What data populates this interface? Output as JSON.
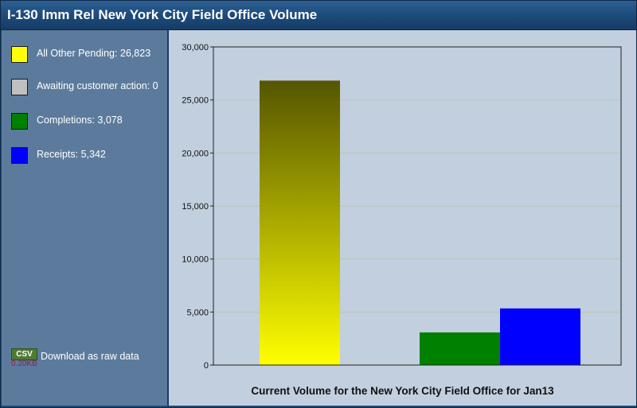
{
  "window": {
    "title": "I-130 Imm Rel New York City Field Office Volume"
  },
  "legend": [
    {
      "label": "All Other Pending: 26,823",
      "color": "#ffff00"
    },
    {
      "label": "Awaiting customer action: 0",
      "color": "#c0c0c0"
    },
    {
      "label": "Completions: 3,078",
      "color": "#008000"
    },
    {
      "label": "Receipts: 5,342",
      "color": "#0000ff"
    }
  ],
  "download": {
    "badge": "CSV",
    "size": "0.20KB",
    "label": "Download as raw data"
  },
  "chart_data": {
    "type": "bar",
    "title": "Current Volume for the New York City Field Office for Jan13",
    "ylim": [
      0,
      30000
    ],
    "yticks": [
      0,
      5000,
      10000,
      15000,
      20000,
      25000,
      30000
    ],
    "ytick_labels": [
      "0",
      "5,000",
      "10,000",
      "15,000",
      "20,000",
      "25,000",
      "30,000"
    ],
    "grid": true,
    "series": [
      {
        "name": "All Other Pending",
        "value": 26823,
        "color": "#ffff00",
        "gradient_top": "#555500"
      },
      {
        "name": "Awaiting customer action",
        "value": 0,
        "color": "#c0c0c0"
      },
      {
        "name": "Completions",
        "value": 3078,
        "color": "#008000"
      },
      {
        "name": "Receipts",
        "value": 5342,
        "color": "#0000ff"
      }
    ]
  }
}
